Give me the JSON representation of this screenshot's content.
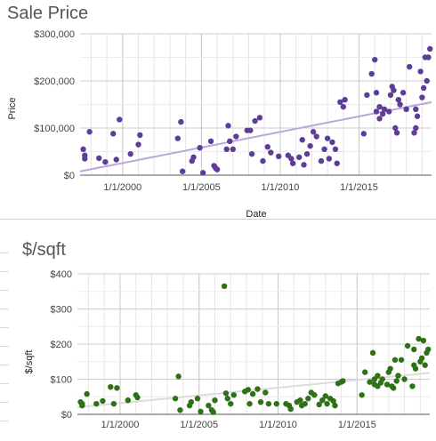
{
  "chart_data": [
    {
      "type": "scatter",
      "title": "Sale Price",
      "xlabel": "Date",
      "ylabel": "Price",
      "x_ticks": [
        "1/1/2000",
        "1/1/2005",
        "1/1/2010",
        "1/1/2015"
      ],
      "y_ticks": [
        "$0",
        "$100,000",
        "$200,000",
        "$300,000"
      ],
      "xlim": [
        1997.3,
        2019.6
      ],
      "ylim": [
        0,
        300000
      ],
      "grid": true,
      "colors": {
        "points": "#5e3d98",
        "trend": "#b6a8dc"
      },
      "trendline": {
        "x": [
          1997.3,
          2019.6
        ],
        "y": [
          8000,
          155000
        ]
      },
      "points": [
        {
          "x": 1997.5,
          "y": 55000
        },
        {
          "x": 1997.6,
          "y": 42000
        },
        {
          "x": 1997.6,
          "y": 35000
        },
        {
          "x": 1997.9,
          "y": 92000
        },
        {
          "x": 1998.5,
          "y": 36000
        },
        {
          "x": 1998.9,
          "y": 28000
        },
        {
          "x": 1999.4,
          "y": 88000
        },
        {
          "x": 1999.6,
          "y": 33000
        },
        {
          "x": 1999.8,
          "y": 118000
        },
        {
          "x": 2000.5,
          "y": 45000
        },
        {
          "x": 2001.0,
          "y": 65000
        },
        {
          "x": 2001.1,
          "y": 85000
        },
        {
          "x": 2003.5,
          "y": 78000
        },
        {
          "x": 2003.7,
          "y": 113000
        },
        {
          "x": 2003.8,
          "y": 8000
        },
        {
          "x": 2004.4,
          "y": 30000
        },
        {
          "x": 2004.5,
          "y": 38000
        },
        {
          "x": 2004.9,
          "y": 58000
        },
        {
          "x": 2005.1,
          "y": 5000
        },
        {
          "x": 2005.6,
          "y": 72000
        },
        {
          "x": 2005.8,
          "y": 20000
        },
        {
          "x": 2005.9,
          "y": 15000
        },
        {
          "x": 2006.0,
          "y": 12000
        },
        {
          "x": 2006.6,
          "y": 55000
        },
        {
          "x": 2006.7,
          "y": 105000
        },
        {
          "x": 2006.8,
          "y": 72000
        },
        {
          "x": 2007.0,
          "y": 55000
        },
        {
          "x": 2007.2,
          "y": 82000
        },
        {
          "x": 2007.9,
          "y": 95000
        },
        {
          "x": 2008.1,
          "y": 95000
        },
        {
          "x": 2008.2,
          "y": 45000
        },
        {
          "x": 2008.4,
          "y": 115000
        },
        {
          "x": 2008.7,
          "y": 122000
        },
        {
          "x": 2008.9,
          "y": 30000
        },
        {
          "x": 2009.2,
          "y": 60000
        },
        {
          "x": 2009.4,
          "y": 48000
        },
        {
          "x": 2009.9,
          "y": 40000
        },
        {
          "x": 2010.5,
          "y": 42000
        },
        {
          "x": 2010.7,
          "y": 35000
        },
        {
          "x": 2010.8,
          "y": 25000
        },
        {
          "x": 2011.2,
          "y": 38000
        },
        {
          "x": 2011.4,
          "y": 75000
        },
        {
          "x": 2011.5,
          "y": 22000
        },
        {
          "x": 2011.7,
          "y": 45000
        },
        {
          "x": 2011.9,
          "y": 62000
        },
        {
          "x": 2012.1,
          "y": 92000
        },
        {
          "x": 2012.3,
          "y": 82000
        },
        {
          "x": 2012.6,
          "y": 30000
        },
        {
          "x": 2012.8,
          "y": 55000
        },
        {
          "x": 2013.0,
          "y": 78000
        },
        {
          "x": 2013.1,
          "y": 35000
        },
        {
          "x": 2013.3,
          "y": 70000
        },
        {
          "x": 2013.5,
          "y": 55000
        },
        {
          "x": 2013.6,
          "y": 25000
        },
        {
          "x": 2013.8,
          "y": 155000
        },
        {
          "x": 2014.0,
          "y": 145000
        },
        {
          "x": 2014.1,
          "y": 160000
        },
        {
          "x": 2015.3,
          "y": 88000
        },
        {
          "x": 2015.5,
          "y": 170000
        },
        {
          "x": 2015.8,
          "y": 215000
        },
        {
          "x": 2016.0,
          "y": 245000
        },
        {
          "x": 2016.1,
          "y": 175000
        },
        {
          "x": 2016.1,
          "y": 135000
        },
        {
          "x": 2016.3,
          "y": 145000
        },
        {
          "x": 2016.3,
          "y": 120000
        },
        {
          "x": 2016.5,
          "y": 130000
        },
        {
          "x": 2016.6,
          "y": 140000
        },
        {
          "x": 2016.9,
          "y": 135000
        },
        {
          "x": 2017.0,
          "y": 170000
        },
        {
          "x": 2017.1,
          "y": 188000
        },
        {
          "x": 2017.2,
          "y": 180000
        },
        {
          "x": 2017.3,
          "y": 100000
        },
        {
          "x": 2017.4,
          "y": 90000
        },
        {
          "x": 2017.5,
          "y": 160000
        },
        {
          "x": 2017.6,
          "y": 150000
        },
        {
          "x": 2017.8,
          "y": 175000
        },
        {
          "x": 2018.0,
          "y": 140000
        },
        {
          "x": 2018.2,
          "y": 230000
        },
        {
          "x": 2018.5,
          "y": 90000
        },
        {
          "x": 2018.6,
          "y": 100000
        },
        {
          "x": 2018.6,
          "y": 140000
        },
        {
          "x": 2018.7,
          "y": 125000
        },
        {
          "x": 2018.9,
          "y": 220000
        },
        {
          "x": 2019.0,
          "y": 165000
        },
        {
          "x": 2019.1,
          "y": 185000
        },
        {
          "x": 2019.2,
          "y": 250000
        },
        {
          "x": 2019.3,
          "y": 200000
        },
        {
          "x": 2019.4,
          "y": 250000
        },
        {
          "x": 2019.5,
          "y": 268000
        }
      ]
    },
    {
      "type": "scatter",
      "title": "$/sqft",
      "xlabel": "",
      "ylabel": "$/sqft",
      "x_ticks": [
        "1/1/2000",
        "1/1/2005",
        "1/1/2010",
        "1/1/2015"
      ],
      "y_ticks": [
        "$0",
        "$100",
        "$200",
        "$300",
        "$400"
      ],
      "xlim": [
        1997.3,
        2019.6
      ],
      "ylim": [
        0,
        400
      ],
      "grid": true,
      "colors": {
        "points": "#2d7219",
        "trend": "#dcdcdc"
      },
      "trendline": {
        "x": [
          1997.3,
          2019.6
        ],
        "y": [
          20,
          118
        ]
      },
      "points": [
        {
          "x": 1997.5,
          "y": 35
        },
        {
          "x": 1997.6,
          "y": 30
        },
        {
          "x": 1997.6,
          "y": 25
        },
        {
          "x": 1997.9,
          "y": 58
        },
        {
          "x": 1998.5,
          "y": 30
        },
        {
          "x": 1998.9,
          "y": 38
        },
        {
          "x": 1999.4,
          "y": 78
        },
        {
          "x": 1999.6,
          "y": 30
        },
        {
          "x": 1999.8,
          "y": 75
        },
        {
          "x": 2000.5,
          "y": 40
        },
        {
          "x": 2001.0,
          "y": 55
        },
        {
          "x": 2001.1,
          "y": 48
        },
        {
          "x": 2003.5,
          "y": 45
        },
        {
          "x": 2003.7,
          "y": 108
        },
        {
          "x": 2003.8,
          "y": 12
        },
        {
          "x": 2004.4,
          "y": 25
        },
        {
          "x": 2004.5,
          "y": 35
        },
        {
          "x": 2004.9,
          "y": 45
        },
        {
          "x": 2005.1,
          "y": 8
        },
        {
          "x": 2005.6,
          "y": 25
        },
        {
          "x": 2005.8,
          "y": 12
        },
        {
          "x": 2005.9,
          "y": 6
        },
        {
          "x": 2006.0,
          "y": 40
        },
        {
          "x": 2006.6,
          "y": 365
        },
        {
          "x": 2006.7,
          "y": 60
        },
        {
          "x": 2006.8,
          "y": 45
        },
        {
          "x": 2007.0,
          "y": 30
        },
        {
          "x": 2007.2,
          "y": 55
        },
        {
          "x": 2007.9,
          "y": 65
        },
        {
          "x": 2008.1,
          "y": 70
        },
        {
          "x": 2008.2,
          "y": 30
        },
        {
          "x": 2008.4,
          "y": 58
        },
        {
          "x": 2008.7,
          "y": 72
        },
        {
          "x": 2008.9,
          "y": 35
        },
        {
          "x": 2009.2,
          "y": 62
        },
        {
          "x": 2009.4,
          "y": 30
        },
        {
          "x": 2009.9,
          "y": 30
        },
        {
          "x": 2010.5,
          "y": 30
        },
        {
          "x": 2010.7,
          "y": 25
        },
        {
          "x": 2010.8,
          "y": 15
        },
        {
          "x": 2011.2,
          "y": 35
        },
        {
          "x": 2011.4,
          "y": 40
        },
        {
          "x": 2011.5,
          "y": 25
        },
        {
          "x": 2011.7,
          "y": 30
        },
        {
          "x": 2011.9,
          "y": 45
        },
        {
          "x": 2012.1,
          "y": 62
        },
        {
          "x": 2012.3,
          "y": 55
        },
        {
          "x": 2012.6,
          "y": 28
        },
        {
          "x": 2012.8,
          "y": 40
        },
        {
          "x": 2013.0,
          "y": 52
        },
        {
          "x": 2013.1,
          "y": 30
        },
        {
          "x": 2013.3,
          "y": 45
        },
        {
          "x": 2013.5,
          "y": 38
        },
        {
          "x": 2013.6,
          "y": 25
        },
        {
          "x": 2013.8,
          "y": 88
        },
        {
          "x": 2014.0,
          "y": 92
        },
        {
          "x": 2014.1,
          "y": 95
        },
        {
          "x": 2015.3,
          "y": 55
        },
        {
          "x": 2015.5,
          "y": 120
        },
        {
          "x": 2015.8,
          "y": 92
        },
        {
          "x": 2016.0,
          "y": 175
        },
        {
          "x": 2016.1,
          "y": 100
        },
        {
          "x": 2016.1,
          "y": 85
        },
        {
          "x": 2016.3,
          "y": 110
        },
        {
          "x": 2016.3,
          "y": 80
        },
        {
          "x": 2016.5,
          "y": 90
        },
        {
          "x": 2016.6,
          "y": 100
        },
        {
          "x": 2016.9,
          "y": 85
        },
        {
          "x": 2017.0,
          "y": 120
        },
        {
          "x": 2017.1,
          "y": 130
        },
        {
          "x": 2017.2,
          "y": 80
        },
        {
          "x": 2017.3,
          "y": 75
        },
        {
          "x": 2017.4,
          "y": 155
        },
        {
          "x": 2017.5,
          "y": 95
        },
        {
          "x": 2017.6,
          "y": 110
        },
        {
          "x": 2017.8,
          "y": 155
        },
        {
          "x": 2018.0,
          "y": 100
        },
        {
          "x": 2018.2,
          "y": 195
        },
        {
          "x": 2018.5,
          "y": 80
        },
        {
          "x": 2018.6,
          "y": 140
        },
        {
          "x": 2018.6,
          "y": 185
        },
        {
          "x": 2018.7,
          "y": 130
        },
        {
          "x": 2018.9,
          "y": 215
        },
        {
          "x": 2019.0,
          "y": 150
        },
        {
          "x": 2019.1,
          "y": 160
        },
        {
          "x": 2019.2,
          "y": 210
        },
        {
          "x": 2019.3,
          "y": 140
        },
        {
          "x": 2019.4,
          "y": 175
        },
        {
          "x": 2019.5,
          "y": 185
        }
      ]
    }
  ]
}
